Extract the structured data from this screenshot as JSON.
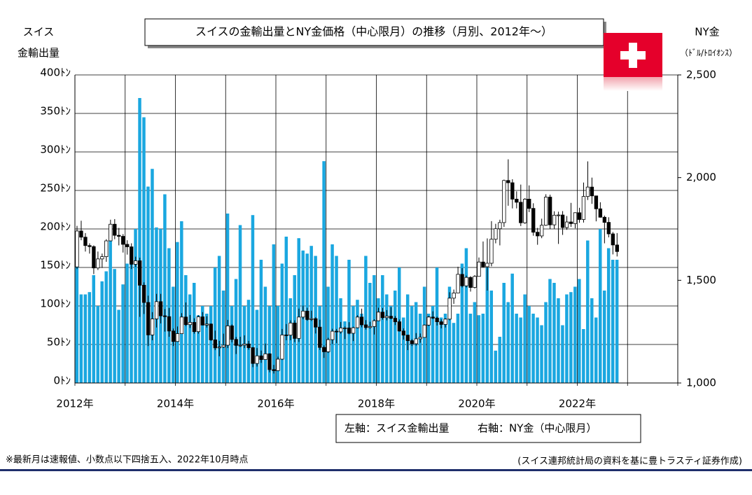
{
  "chart_data": {
    "type": "bar",
    "title": "スイスの金輸出量とNY金価格（中心限月）の推移（月別、2012年～）",
    "y_label": [
      "スイス",
      "金輸出量"
    ],
    "y2_label": [
      "NY金",
      "（ﾄﾞﾙ/ﾄﾛｲｵﾝｽ）"
    ],
    "footnote": "※最新月は速報値、小数点以下四捨五入、2022年10月時点",
    "source": "(スイス連邦統計局の資料を基に豊トラスティ証券作成)",
    "categories": [
      "2012年",
      null,
      null,
      null,
      null,
      null,
      null,
      null,
      null,
      null,
      null,
      null,
      null,
      null,
      null,
      null,
      null,
      null,
      null,
      null,
      null,
      null,
      null,
      null,
      "2014年",
      null,
      null,
      null,
      null,
      null,
      null,
      null,
      null,
      null,
      null,
      null,
      null,
      null,
      null,
      null,
      null,
      null,
      null,
      null,
      null,
      null,
      null,
      null,
      "2016年",
      null,
      null,
      null,
      null,
      null,
      null,
      null,
      null,
      null,
      null,
      null,
      null,
      null,
      null,
      null,
      null,
      null,
      null,
      null,
      null,
      null,
      null,
      null,
      "2018年",
      null,
      null,
      null,
      null,
      null,
      null,
      null,
      null,
      null,
      null,
      null,
      null,
      null,
      null,
      null,
      null,
      null,
      null,
      null,
      null,
      null,
      null,
      null,
      "2020年",
      null,
      null,
      null,
      null,
      null,
      null,
      null,
      null,
      null,
      null,
      null,
      null,
      null,
      null,
      null,
      null,
      null,
      null,
      null,
      null,
      null,
      null,
      null,
      "2022年",
      null,
      null,
      null,
      null,
      null,
      null,
      null,
      null,
      null,
      null,
      null,
      null,
      null,
      null,
      null,
      null,
      null,
      null,
      null,
      null,
      null,
      null,
      null
    ],
    "ylim": [
      0,
      400
    ],
    "yticks": [
      {
        "value": 0,
        "label": "0ﾄﾝ"
      },
      {
        "value": 50,
        "label": "50ﾄﾝ"
      },
      {
        "value": 100,
        "label": "100ﾄﾝ"
      },
      {
        "value": 150,
        "label": "150ﾄﾝ"
      },
      {
        "value": 200,
        "label": "200ﾄﾝ"
      },
      {
        "value": 250,
        "label": "250ﾄﾝ"
      },
      {
        "value": 300,
        "label": "300ﾄﾝ"
      },
      {
        "value": 350,
        "label": "350ﾄﾝ"
      },
      {
        "value": 400,
        "label": "400ﾄﾝ"
      }
    ],
    "y2lim": [
      1000,
      2500
    ],
    "y2ticks": [
      {
        "value": 1000,
        "label": "1,000"
      },
      {
        "value": 1500,
        "label": "1,500"
      },
      {
        "value": 2000,
        "label": "2,000"
      },
      {
        "value": 2500,
        "label": "2,500"
      }
    ],
    "grid": true,
    "series": [
      {
        "name": "左軸：スイス金輸出量",
        "type": "bar",
        "color": "#1aa7e0",
        "values": [
          153,
          115,
          115,
          118,
          140,
          100,
          132,
          145,
          185,
          148,
          95,
          128,
          155,
          155,
          200,
          370,
          345,
          255,
          278,
          202,
          200,
          245,
          175,
          125,
          183,
          210,
          140,
          115,
          130,
          88,
          100,
          90,
          100,
          150,
          165,
          120,
          220,
          100,
          135,
          205,
          100,
          108,
          218,
          95,
          160,
          125,
          100,
          180,
          100,
          155,
          190,
          110,
          140,
          188,
          172,
          168,
          178,
          165,
          100,
          288,
          125,
          180,
          165,
          110,
          80,
          160,
          100,
          108,
          90,
          165,
          130,
          140,
          110,
          140,
          115,
          100,
          120,
          150,
          85,
          115,
          100,
          105,
          90,
          125,
          90,
          100,
          150,
          85,
          90,
          125,
          78,
          90,
          155,
          175,
          90,
          105,
          88,
          90,
          150,
          120,
          42,
          60,
          130,
          105,
          142,
          90,
          85,
          115,
          100,
          90,
          85,
          75,
          105,
          135,
          130,
          110,
          75,
          115,
          118,
          125,
          135,
          70,
          185,
          110,
          85,
          200,
          120,
          175,
          160,
          160,
          null,
          null,
          null,
          null,
          null,
          null,
          null,
          null,
          null,
          null,
          null,
          null,
          null,
          null
        ]
      },
      {
        "name": "右軸：NY金（中心限月）",
        "type": "candlestick",
        "axis": "y2",
        "open": [
          1565,
          1740,
          1710,
          1669,
          1664,
          1560,
          1604,
          1615,
          1692,
          1773,
          1719,
          1714,
          1675,
          1663,
          1578,
          1595,
          1476,
          1392,
          1234,
          1312,
          1396,
          1327,
          1323,
          1253,
          1202,
          1240,
          1321,
          1284,
          1295,
          1250,
          1322,
          1282,
          1287,
          1210,
          1171,
          1175,
          1184,
          1278,
          1212,
          1183,
          1184,
          1190,
          1172,
          1095,
          1132,
          1114,
          1142,
          1065,
          1060,
          1116,
          1234,
          1233,
          1292,
          1217,
          1321,
          1350,
          1309,
          1313,
          1272,
          1173,
          1152,
          1211,
          1252,
          1249,
          1268,
          1268,
          1242,
          1269,
          1321,
          1283,
          1270,
          1275,
          1303,
          1345,
          1318,
          1325,
          1315,
          1298,
          1253,
          1233,
          1206,
          1191,
          1215,
          1222,
          1282,
          1321,
          1316,
          1298,
          1285,
          1311,
          1413,
          1438,
          1529,
          1473,
          1514,
          1465,
          1519,
          1589,
          1566,
          1583,
          1700,
          1751,
          1781,
          1986,
          1975,
          1895,
          1880,
          1780,
          1895,
          1850,
          1734,
          1716,
          1768,
          1905,
          1770,
          1817,
          1818,
          1757,
          1784,
          1776,
          1829,
          1796,
          1908,
          1954,
          1911,
          1848,
          1807,
          1782,
          1726,
          1672,
          null,
          null,
          null,
          null,
          null,
          null,
          null,
          null,
          null,
          null,
          null,
          null,
          null,
          null
        ],
        "high": [
          1765,
          1790,
          1730,
          1680,
          1670,
          1640,
          1630,
          1700,
          1795,
          1798,
          1755,
          1725,
          1695,
          1680,
          1615,
          1610,
          1490,
          1425,
          1345,
          1434,
          1434,
          1360,
          1365,
          1265,
          1275,
          1340,
          1392,
          1331,
          1315,
          1330,
          1345,
          1325,
          1290,
          1255,
          1205,
          1240,
          1307,
          1285,
          1224,
          1225,
          1232,
          1205,
          1175,
          1170,
          1158,
          1192,
          1145,
          1088,
          1128,
          1263,
          1287,
          1305,
          1305,
          1362,
          1377,
          1366,
          1352,
          1320,
          1308,
          1183,
          1220,
          1264,
          1263,
          1297,
          1275,
          1296,
          1274,
          1330,
          1362,
          1306,
          1298,
          1310,
          1366,
          1365,
          1355,
          1369,
          1326,
          1309,
          1266,
          1235,
          1214,
          1243,
          1241,
          1285,
          1327,
          1349,
          1323,
          1310,
          1315,
          1442,
          1455,
          1566,
          1560,
          1523,
          1520,
          1525,
          1611,
          1689,
          1704,
          1788,
          1775,
          1795,
          1990,
          2089,
          1992,
          1933,
          1966,
          1900,
          1962,
          1875,
          1755,
          1800,
          1919,
          1917,
          1836,
          1834,
          1837,
          1813,
          1877,
          1831,
          1853,
          1976,
          2079,
          2000,
          1912,
          1880,
          1815,
          1807,
          1735,
          1730,
          null,
          null,
          null,
          null,
          null,
          null,
          null,
          null,
          null,
          null,
          null,
          null,
          null,
          null
        ],
        "low": [
          1555,
          1695,
          1640,
          1630,
          1530,
          1550,
          1560,
          1590,
          1690,
          1700,
          1670,
          1635,
          1625,
          1555,
          1565,
          1322,
          1336,
          1180,
          1208,
          1270,
          1290,
          1250,
          1225,
          1180,
          1200,
          1240,
          1277,
          1268,
          1240,
          1240,
          1280,
          1270,
          1205,
          1160,
          1130,
          1170,
          1170,
          1198,
          1141,
          1175,
          1170,
          1162,
          1077,
          1080,
          1098,
          1113,
          1052,
          1046,
          1062,
          1112,
          1208,
          1208,
          1199,
          1200,
          1310,
          1303,
          1302,
          1241,
          1161,
          1122,
          1146,
          1190,
          1194,
          1240,
          1214,
          1237,
          1204,
          1266,
          1271,
          1260,
          1265,
          1236,
          1303,
          1308,
          1305,
          1310,
          1282,
          1250,
          1211,
          1160,
          1180,
          1182,
          1196,
          1222,
          1277,
          1311,
          1280,
          1266,
          1270,
          1305,
          1385,
          1437,
          1465,
          1465,
          1445,
          1460,
          1518,
          1562,
          1450,
          1568,
          1680,
          1670,
          1760,
          1863,
          1850,
          1850,
          1764,
          1775,
          1832,
          1717,
          1673,
          1705,
          1765,
          1750,
          1751,
          1677,
          1721,
          1746,
          1760,
          1753,
          1780,
          1781,
          1891,
          1872,
          1787,
          1805,
          1680,
          1709,
          1626,
          1616,
          null,
          null,
          null,
          null,
          null,
          null,
          null,
          null,
          null,
          null,
          null,
          null,
          null,
          null
        ],
        "close": [
          1740,
          1710,
          1669,
          1664,
          1560,
          1604,
          1615,
          1692,
          1773,
          1719,
          1714,
          1675,
          1663,
          1578,
          1595,
          1476,
          1392,
          1234,
          1312,
          1396,
          1327,
          1323,
          1253,
          1202,
          1240,
          1321,
          1284,
          1295,
          1250,
          1322,
          1282,
          1287,
          1210,
          1171,
          1175,
          1184,
          1278,
          1212,
          1183,
          1184,
          1190,
          1172,
          1095,
          1132,
          1114,
          1142,
          1065,
          1060,
          1116,
          1234,
          1233,
          1292,
          1217,
          1321,
          1350,
          1309,
          1313,
          1272,
          1173,
          1152,
          1211,
          1252,
          1249,
          1268,
          1268,
          1242,
          1269,
          1321,
          1283,
          1270,
          1275,
          1303,
          1345,
          1318,
          1325,
          1315,
          1298,
          1253,
          1233,
          1206,
          1191,
          1215,
          1222,
          1282,
          1321,
          1316,
          1298,
          1285,
          1311,
          1413,
          1438,
          1529,
          1473,
          1514,
          1465,
          1519,
          1589,
          1566,
          1583,
          1700,
          1751,
          1781,
          1986,
          1975,
          1895,
          1880,
          1780,
          1895,
          1850,
          1734,
          1716,
          1768,
          1905,
          1770,
          1817,
          1818,
          1757,
          1784,
          1776,
          1829,
          1796,
          1908,
          1954,
          1911,
          1848,
          1807,
          1782,
          1726,
          1672,
          1640,
          null,
          null,
          null,
          null,
          null,
          null,
          null,
          null,
          null,
          null,
          null,
          null,
          null,
          null
        ]
      }
    ]
  }
}
